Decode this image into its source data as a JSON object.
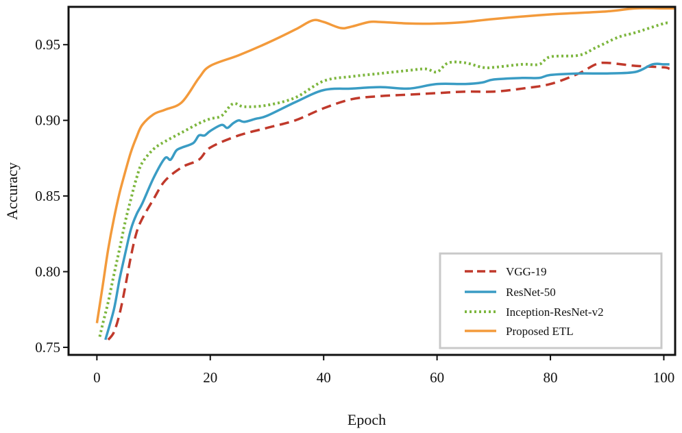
{
  "chart_data": {
    "type": "line",
    "title": "",
    "xlabel": "Epoch",
    "ylabel": "Accuracy",
    "xlim": [
      -5,
      102
    ],
    "ylim": [
      0.745,
      0.975
    ],
    "xticks": [
      0,
      20,
      40,
      60,
      80,
      100
    ],
    "yticks": [
      0.75,
      0.8,
      0.85,
      0.9,
      0.95
    ],
    "xtick_labels": [
      "0",
      "20",
      "40",
      "60",
      "80",
      "100"
    ],
    "ytick_labels": [
      "0.75",
      "0.80",
      "0.85",
      "0.90",
      "0.95"
    ],
    "grid": false,
    "legend_position": "bottom-right",
    "series": [
      {
        "name": "VGG-19",
        "color": "#c0392b",
        "style": "dashed",
        "x": [
          2,
          3,
          4,
          5,
          6,
          7,
          8,
          10,
          12,
          15,
          18,
          20,
          25,
          30,
          35,
          40,
          45,
          50,
          55,
          60,
          65,
          70,
          75,
          80,
          85,
          88,
          90,
          95,
          100,
          101
        ],
        "y": [
          0.755,
          0.76,
          0.772,
          0.79,
          0.81,
          0.826,
          0.835,
          0.848,
          0.86,
          0.869,
          0.874,
          0.882,
          0.89,
          0.895,
          0.9,
          0.908,
          0.914,
          0.916,
          0.917,
          0.918,
          0.919,
          0.919,
          0.921,
          0.924,
          0.931,
          0.937,
          0.938,
          0.936,
          0.935,
          0.934
        ]
      },
      {
        "name": "ResNet-50",
        "color": "#3a9cc4",
        "style": "solid",
        "x": [
          1.5,
          3,
          4,
          5,
          6,
          7,
          8,
          10,
          12,
          13,
          14,
          15,
          17,
          18,
          19,
          20,
          22,
          23,
          24,
          25,
          26,
          28,
          30,
          35,
          40,
          45,
          50,
          55,
          60,
          65,
          68,
          70,
          75,
          78,
          80,
          85,
          90,
          95,
          98,
          100,
          101
        ],
        "y": [
          0.755,
          0.775,
          0.795,
          0.812,
          0.828,
          0.838,
          0.845,
          0.862,
          0.875,
          0.874,
          0.88,
          0.882,
          0.885,
          0.89,
          0.89,
          0.893,
          0.897,
          0.895,
          0.898,
          0.9,
          0.899,
          0.901,
          0.903,
          0.912,
          0.92,
          0.921,
          0.922,
          0.921,
          0.924,
          0.924,
          0.925,
          0.927,
          0.928,
          0.928,
          0.93,
          0.931,
          0.931,
          0.932,
          0.937,
          0.937,
          0.937
        ]
      },
      {
        "name": "Inception-ResNet-v2",
        "color": "#7db63e",
        "style": "dotted",
        "x": [
          0.5,
          1,
          2,
          3,
          4,
          5,
          6,
          7,
          8,
          10,
          12,
          15,
          18,
          20,
          22,
          24,
          26,
          30,
          35,
          40,
          45,
          50,
          55,
          58,
          60,
          62,
          65,
          68,
          70,
          75,
          78,
          80,
          85,
          88,
          92,
          95,
          100,
          101
        ],
        "y": [
          0.757,
          0.765,
          0.78,
          0.798,
          0.815,
          0.833,
          0.848,
          0.862,
          0.872,
          0.881,
          0.886,
          0.892,
          0.898,
          0.901,
          0.903,
          0.911,
          0.909,
          0.91,
          0.915,
          0.926,
          0.929,
          0.931,
          0.933,
          0.934,
          0.932,
          0.938,
          0.938,
          0.935,
          0.935,
          0.937,
          0.937,
          0.942,
          0.943,
          0.948,
          0.955,
          0.958,
          0.964,
          0.964
        ]
      },
      {
        "name": "Proposed ETL",
        "color": "#f39a3b",
        "style": "solid",
        "x": [
          0,
          1,
          2,
          3,
          4,
          5,
          6,
          7,
          8,
          10,
          12,
          15,
          18,
          20,
          25,
          30,
          35,
          38,
          40,
          43,
          45,
          48,
          50,
          55,
          60,
          65,
          70,
          80,
          90,
          95,
          100,
          102
        ],
        "y": [
          0.766,
          0.79,
          0.815,
          0.835,
          0.852,
          0.866,
          0.879,
          0.889,
          0.897,
          0.904,
          0.907,
          0.912,
          0.928,
          0.936,
          0.943,
          0.951,
          0.96,
          0.966,
          0.965,
          0.961,
          0.962,
          0.965,
          0.965,
          0.964,
          0.964,
          0.965,
          0.967,
          0.97,
          0.972,
          0.974,
          0.974,
          0.974
        ]
      }
    ]
  }
}
